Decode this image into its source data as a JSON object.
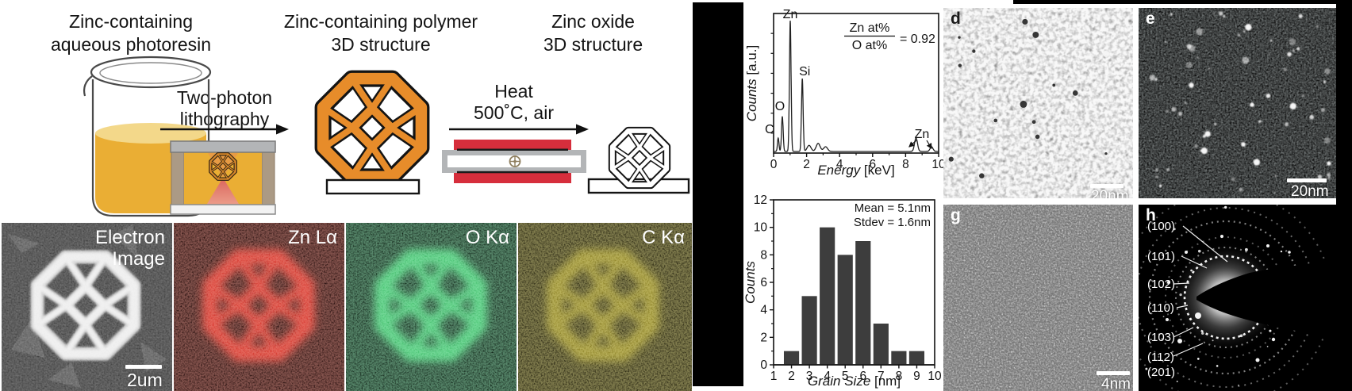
{
  "colors": {
    "resin_yellow": "#EAAE34",
    "resin_surface": "#F3D88A",
    "polymer_orange": "#E78C2A",
    "furnace_red": "#D62E3C",
    "slab_gray": "#B3B5B7",
    "wall_tan": "#AB9A85",
    "laser_pink": "#E2706B",
    "map_red": "#D42A20",
    "map_green": "#3DBD68",
    "map_yellow": "#A89A20"
  },
  "schematic": {
    "step1_title_line1": "Zinc-containing",
    "step1_title_line2": "aqueous photoresin",
    "arrow1_line1": "Two-photon",
    "arrow1_line2": "lithography",
    "step2_title_line1": "Zinc-containing polymer",
    "step2_title_line2": "3D structure",
    "arrow2_line1": "Heat",
    "arrow2_line2": "500˚C, air",
    "step3_title_line1": "Zinc oxide",
    "step3_title_line2": "3D structure"
  },
  "eds_maps": {
    "panels": [
      {
        "id": "electron",
        "label_line1": "Electron",
        "label_line2": "Image",
        "scale_bar": "2um"
      },
      {
        "id": "zn",
        "label_line1": "Zn Lα"
      },
      {
        "id": "o",
        "label_line1": "O Kα"
      },
      {
        "id": "c",
        "label_line1": "C Kα"
      }
    ]
  },
  "tem_panels": [
    {
      "id": "d",
      "label": "d",
      "scale_bar": "20nm"
    },
    {
      "id": "e",
      "label": "e",
      "scale_bar": "20nm"
    },
    {
      "id": "g",
      "label": "g",
      "scale_bar": "4nm"
    },
    {
      "id": "h",
      "label": "h",
      "ring_labels": [
        "(100)",
        "(101)",
        "(102)",
        "(110)",
        "(103)",
        "(112)",
        "(201)"
      ]
    }
  ],
  "chart_data": [
    {
      "type": "line",
      "id": "edx_spectrum",
      "xlabel_italic": "Energy",
      "xlabel_unit": " [keV]",
      "ylabel_italic": "Counts",
      "ylabel_unit": " [a.u.]",
      "xlim": [
        0,
        10
      ],
      "xticks": [
        0,
        2,
        4,
        6,
        8,
        10
      ],
      "annotation": {
        "numerator": "Zn at%",
        "denominator": "O at%",
        "equals": "= 0.92"
      },
      "peaks": [
        {
          "label": "C",
          "x": 0.28,
          "height": 0.1
        },
        {
          "label": "O",
          "x": 0.53,
          "height": 0.26
        },
        {
          "label": "Zn",
          "x": 1.01,
          "height": 0.97
        },
        {
          "label": "Si",
          "x": 1.74,
          "height": 0.54
        },
        {
          "label": "Zn",
          "x": 8.63,
          "height": 0.1
        },
        {
          "label": "",
          "x": 9.57,
          "height": 0.035
        }
      ],
      "minor_bumps": [
        {
          "x": 2.15,
          "height": 0.045
        },
        {
          "x": 2.7,
          "height": 0.06
        },
        {
          "x": 3.15,
          "height": 0.035
        }
      ]
    },
    {
      "type": "bar",
      "id": "grain_histogram",
      "categories": [
        2,
        3,
        4,
        5,
        6,
        7,
        8,
        9
      ],
      "values": [
        1,
        5,
        10,
        8,
        9,
        3,
        1,
        1
      ],
      "xlabel_italic": "Grain Size",
      "xlabel_unit": " [nm]",
      "ylabel_italic": "Counts",
      "xlim": [
        1,
        10
      ],
      "ylim": [
        0,
        12
      ],
      "xticks": [
        1,
        2,
        3,
        4,
        5,
        6,
        7,
        8,
        9,
        10
      ],
      "yticks": [
        0,
        2,
        4,
        6,
        8,
        10,
        12
      ],
      "annotations": [
        "Mean = 5.1nm",
        "Stdev = 1.6nm"
      ]
    }
  ]
}
